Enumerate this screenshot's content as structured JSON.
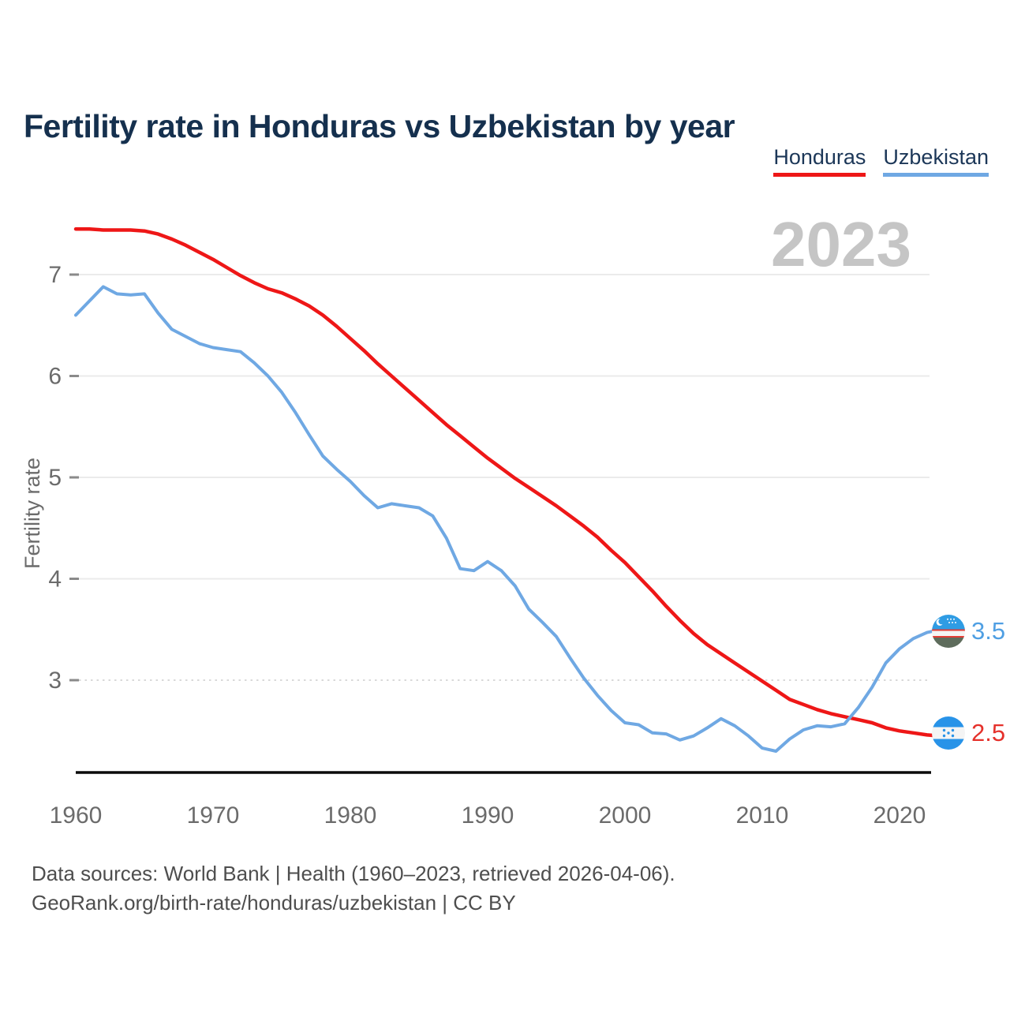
{
  "title": "Fertility rate in Honduras vs Uzbekistan by year",
  "watermark": "2023",
  "legend": [
    {
      "label": "Honduras",
      "color": "#ee1717"
    },
    {
      "label": "Uzbekistan",
      "color": "#6fa8e3"
    }
  ],
  "y_axis": {
    "label": "Fertility rate",
    "ticks": [
      7,
      6,
      5,
      4,
      3
    ],
    "dotted_gridlines": [
      3
    ]
  },
  "x_axis": {
    "ticks": [
      1960,
      1970,
      1980,
      1990,
      2000,
      2010,
      2020
    ]
  },
  "end_labels": [
    {
      "series": "Uzbekistan",
      "value": "3.5",
      "color": "#4f9fe3",
      "flag": "uzbekistan-flag"
    },
    {
      "series": "Honduras",
      "value": "2.5",
      "color": "#e5312b",
      "flag": "honduras-flag"
    }
  ],
  "footer": {
    "line1": "Data sources: World Bank | Health (1960–2023, retrieved 2026-04-06).",
    "line2": "GeoRank.org/birth-rate/honduras/uzbekistan | CC BY"
  },
  "colors": {
    "title": "#15304e",
    "legend_text": "#1c3758",
    "axis_text": "#6b6b6b",
    "axis_line": "#0a0a0a",
    "grid": "#ebebeb",
    "grid_dotted": "#d9d9d9",
    "tick": "#8a8a8a",
    "watermark": "#c5c5c5",
    "footer_text": "#4e4e4e"
  },
  "chart_data": {
    "type": "line",
    "title": "Fertility rate in Honduras vs Uzbekistan by year",
    "xlabel": "",
    "ylabel": "Fertility rate",
    "xlim": [
      1960,
      2023
    ],
    "ylim": [
      2.1,
      7.6
    ],
    "grid": "horizontal",
    "legend_position": "top-right",
    "x": [
      1960,
      1961,
      1962,
      1963,
      1964,
      1965,
      1966,
      1967,
      1968,
      1969,
      1970,
      1971,
      1972,
      1973,
      1974,
      1975,
      1976,
      1977,
      1978,
      1979,
      1980,
      1981,
      1982,
      1983,
      1984,
      1985,
      1986,
      1987,
      1988,
      1989,
      1990,
      1991,
      1992,
      1993,
      1994,
      1995,
      1996,
      1997,
      1998,
      1999,
      2000,
      2001,
      2002,
      2003,
      2004,
      2005,
      2006,
      2007,
      2008,
      2009,
      2010,
      2011,
      2012,
      2013,
      2014,
      2015,
      2016,
      2017,
      2018,
      2019,
      2020,
      2021,
      2022,
      2023
    ],
    "series": [
      {
        "name": "Honduras",
        "color": "#ee1717",
        "end_label": "2.5",
        "values": [
          7.45,
          7.45,
          7.44,
          7.44,
          7.44,
          7.43,
          7.4,
          7.35,
          7.29,
          7.22,
          7.15,
          7.07,
          6.99,
          6.92,
          6.86,
          6.82,
          6.76,
          6.69,
          6.6,
          6.49,
          6.37,
          6.25,
          6.12,
          6.0,
          5.88,
          5.76,
          5.64,
          5.52,
          5.41,
          5.3,
          5.19,
          5.09,
          4.99,
          4.9,
          4.81,
          4.72,
          4.62,
          4.52,
          4.41,
          4.28,
          4.16,
          4.02,
          3.88,
          3.73,
          3.59,
          3.46,
          3.35,
          3.26,
          3.17,
          3.08,
          2.99,
          2.9,
          2.81,
          2.76,
          2.71,
          2.67,
          2.64,
          2.61,
          2.58,
          2.53,
          2.5,
          2.48,
          2.46,
          2.45
        ]
      },
      {
        "name": "Uzbekistan",
        "color": "#6fa8e3",
        "end_label": "3.5",
        "values": [
          6.6,
          6.74,
          6.88,
          6.81,
          6.8,
          6.81,
          6.62,
          6.46,
          6.39,
          6.32,
          6.28,
          6.26,
          6.24,
          6.13,
          6.0,
          5.84,
          5.64,
          5.42,
          5.21,
          5.08,
          4.96,
          4.82,
          4.7,
          4.74,
          4.72,
          4.7,
          4.62,
          4.4,
          4.1,
          4.08,
          4.17,
          4.08,
          3.93,
          3.7,
          3.57,
          3.43,
          3.22,
          3.02,
          2.85,
          2.7,
          2.58,
          2.56,
          2.48,
          2.47,
          2.41,
          2.45,
          2.53,
          2.62,
          2.55,
          2.45,
          2.33,
          2.3,
          2.42,
          2.51,
          2.55,
          2.54,
          2.57,
          2.73,
          2.93,
          3.17,
          3.31,
          3.41,
          3.47,
          3.5
        ]
      }
    ]
  }
}
